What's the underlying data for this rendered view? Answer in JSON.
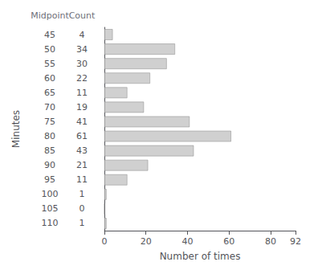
{
  "chart_data": {
    "type": "bar",
    "orientation": "horizontal",
    "categories": [
      45,
      50,
      55,
      60,
      65,
      70,
      75,
      80,
      85,
      90,
      95,
      100,
      105,
      110
    ],
    "values": [
      4,
      34,
      30,
      22,
      11,
      19,
      41,
      61,
      43,
      21,
      11,
      1,
      0,
      1
    ],
    "color": "#d0d0d0",
    "xlabel": "Number of times",
    "ylabel": "Minutes",
    "annotations": [
      "Midpoint",
      "Count"
    ],
    "xlim": [
      0,
      92
    ],
    "xticks": [
      0,
      20,
      40,
      60,
      80
    ],
    "grid": false,
    "data_labels": true
  }
}
